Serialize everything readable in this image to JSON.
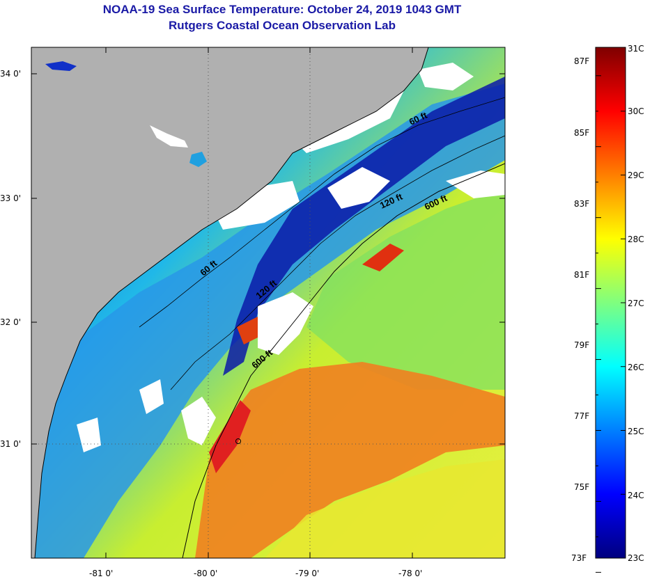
{
  "title": "NOAA-19 Sea Surface Temperature:  October 24, 2019 1043 GMT",
  "subtitle": "Rutgers Coastal Ocean Observation Lab",
  "map": {
    "lon_ticks": [
      "-81 0'",
      "-80 0'",
      "-79 0'",
      "-78 0'"
    ],
    "lat_ticks": [
      "34 0'",
      "33 0'",
      "32 0'",
      "31 0'"
    ],
    "contours": [
      "60 ft",
      "120 ft",
      "600 ft",
      "60 ft",
      "120 ft",
      "600 ft"
    ],
    "colors": {
      "land": "#b0b0b0",
      "cloud": "#ffffff"
    }
  },
  "colorbar": {
    "celsius": [
      "31C",
      "30C",
      "29C",
      "28C",
      "27C",
      "26C",
      "25C",
      "24C",
      "23C"
    ],
    "fahrenheit": [
      "87F",
      "85F",
      "83F",
      "81F",
      "79F",
      "77F",
      "75F",
      "73F"
    ],
    "range_c": [
      23,
      31
    ],
    "colors": [
      "#00007f",
      "#0000ff",
      "#007fff",
      "#00ffff",
      "#7fff7f",
      "#ffff00",
      "#ff7f00",
      "#ff0000",
      "#7f0000"
    ]
  }
}
